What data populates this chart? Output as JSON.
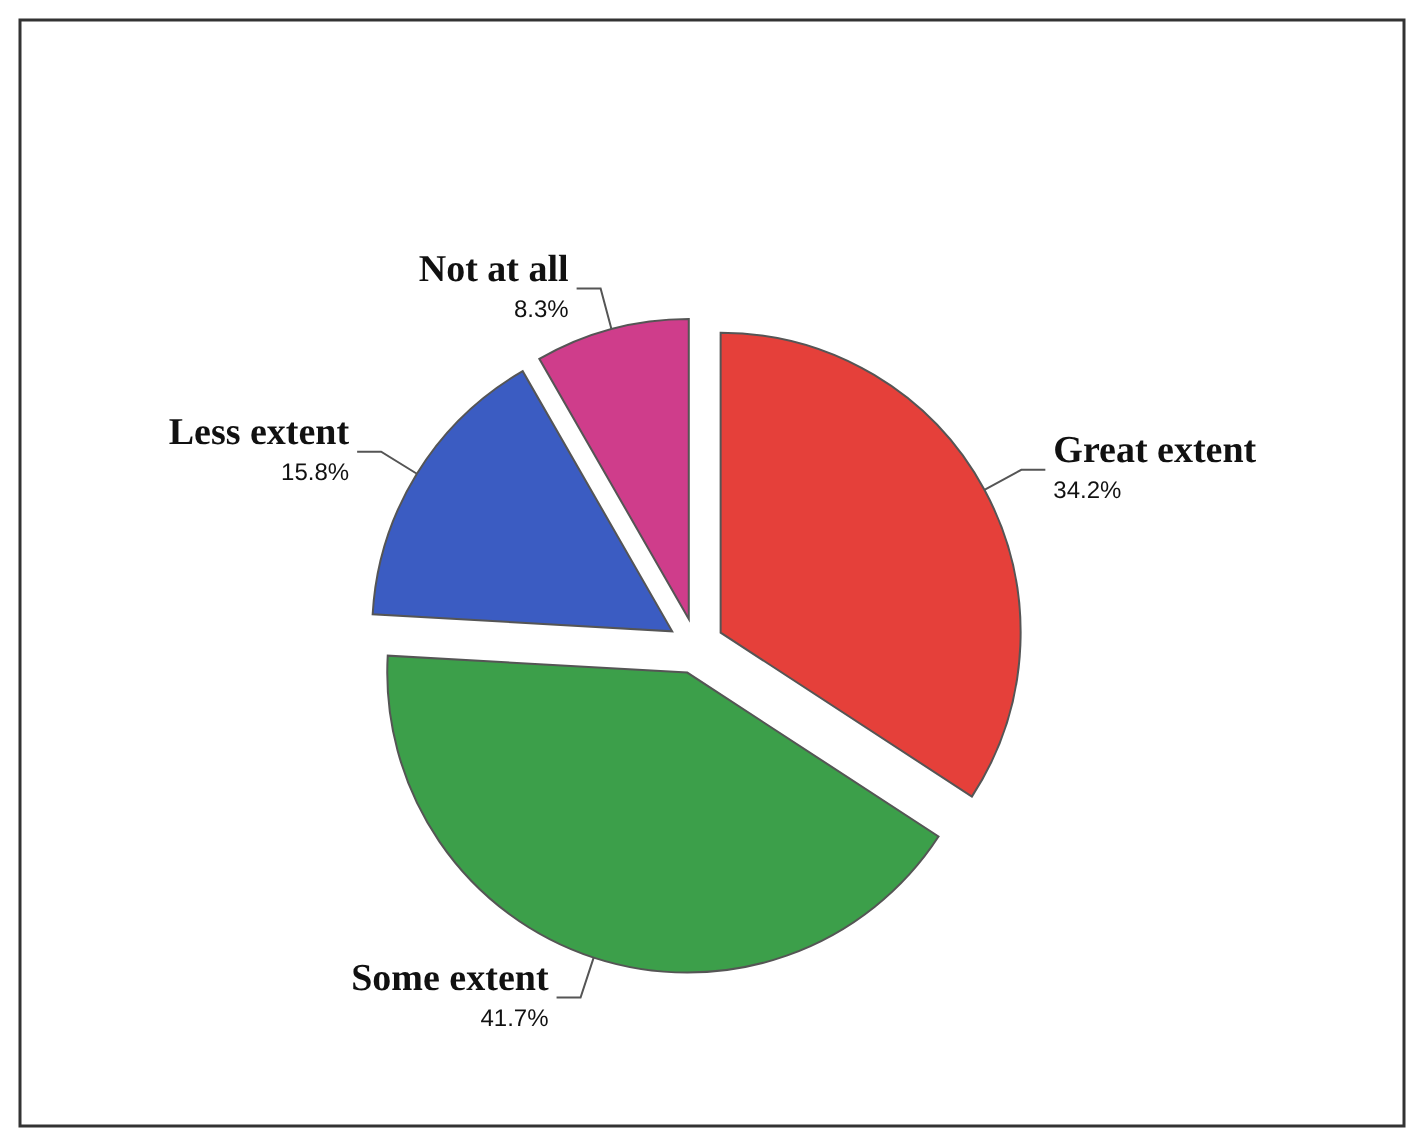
{
  "chart_data": {
    "type": "pie",
    "categories": [
      "Great extent",
      "Some extent",
      "Less extent",
      "Not at all"
    ],
    "values": [
      34.2,
      41.7,
      15.8,
      8.3
    ],
    "colors": [
      "#e5403a",
      "#3c9f4a",
      "#3b5cc2",
      "#cf3d8b"
    ],
    "value_labels": [
      "34.2%",
      "41.7%",
      "15.8%",
      "8.3%"
    ]
  }
}
